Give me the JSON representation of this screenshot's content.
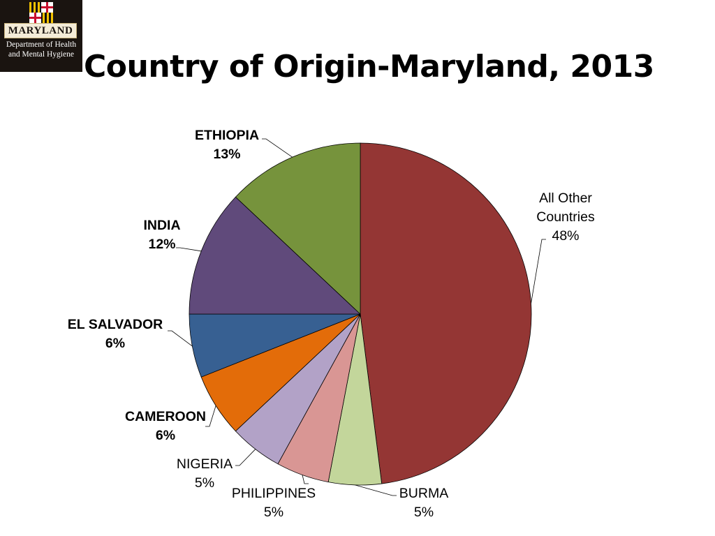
{
  "logo": {
    "state_text": "MARYLAND",
    "dept_line1": "Department of Health",
    "dept_line2": "and Mental Hygiene"
  },
  "title": "Country of Origin-Maryland, 2013",
  "chart_data": {
    "type": "pie",
    "title": "Country of Origin-Maryland, 2013",
    "start_angle_deg": 0,
    "direction": "clockwise",
    "legend": "none (leader-line labels)",
    "slices": [
      {
        "label": "All Other Countries",
        "label_lines": [
          "All Other",
          "Countries"
        ],
        "value": 48,
        "value_label": "48%",
        "color": "#943634",
        "bold": false
      },
      {
        "label": "BURMA",
        "label_lines": [
          "BURMA"
        ],
        "value": 5,
        "value_label": "5%",
        "color": "#c3d69b",
        "bold": false
      },
      {
        "label": "PHILIPPINES",
        "label_lines": [
          "PHILIPPINES"
        ],
        "value": 5,
        "value_label": "5%",
        "color": "#d99694",
        "bold": false
      },
      {
        "label": "NIGERIA",
        "label_lines": [
          "NIGERIA"
        ],
        "value": 5,
        "value_label": "5%",
        "color": "#b2a2c7",
        "bold": false
      },
      {
        "label": "CAMEROON",
        "label_lines": [
          "CAMEROON"
        ],
        "value": 6,
        "value_label": "6%",
        "color": "#e36c09",
        "bold": true
      },
      {
        "label": "EL SALVADOR",
        "label_lines": [
          "EL SALVADOR"
        ],
        "value": 6,
        "value_label": "6%",
        "color": "#376092",
        "bold": true
      },
      {
        "label": "INDIA",
        "label_lines": [
          "INDIA"
        ],
        "value": 12,
        "value_label": "12%",
        "color": "#604a7b",
        "bold": true
      },
      {
        "label": "ETHIOPIA",
        "label_lines": [
          "ETHIOPIA"
        ],
        "value": 13,
        "value_label": "13%",
        "color": "#76933c",
        "bold": true
      }
    ]
  }
}
